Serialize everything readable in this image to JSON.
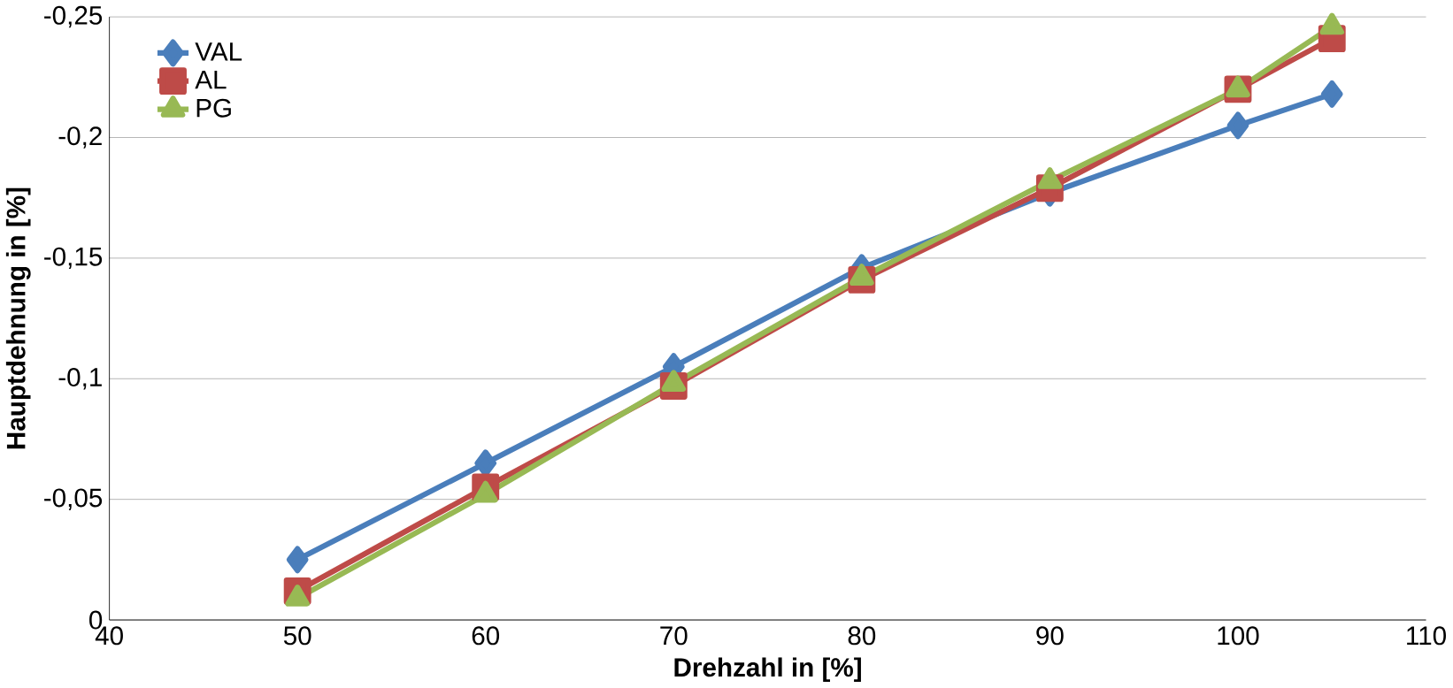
{
  "chart_data": {
    "type": "line",
    "xlabel": "Drehzahl in [%]",
    "ylabel": "Hauptdehnung in [%]",
    "x": [
      50,
      60,
      70,
      80,
      90,
      100,
      105
    ],
    "series": [
      {
        "name": "VAL",
        "color": "#4a7ebb",
        "marker": "diamond",
        "values": [
          -0.025,
          -0.065,
          -0.105,
          -0.146,
          -0.177,
          -0.205,
          -0.218
        ]
      },
      {
        "name": "AL",
        "color": "#be4b48",
        "marker": "square",
        "values": [
          -0.012,
          -0.055,
          -0.097,
          -0.141,
          -0.179,
          -0.22,
          -0.241
        ]
      },
      {
        "name": "PG",
        "color": "#98b954",
        "marker": "triangle",
        "values": [
          -0.009,
          -0.052,
          -0.098,
          -0.142,
          -0.182,
          -0.22,
          -0.246
        ]
      }
    ],
    "xlim": [
      40,
      110
    ],
    "xticks": [
      40,
      50,
      60,
      70,
      80,
      90,
      100,
      110
    ],
    "ylim": [
      0,
      -0.25
    ],
    "yticks": [
      0,
      {
        "value": -0.05,
        "label": "-0,05"
      },
      {
        "value": -0.1,
        "label": "-0,1"
      },
      {
        "value": -0.15,
        "label": "-0,15"
      },
      {
        "value": -0.2,
        "label": "-0,2"
      },
      {
        "value": -0.25,
        "label": "-0,25"
      }
    ],
    "grid": "y",
    "legend": "top left",
    "line_style": "solid"
  }
}
